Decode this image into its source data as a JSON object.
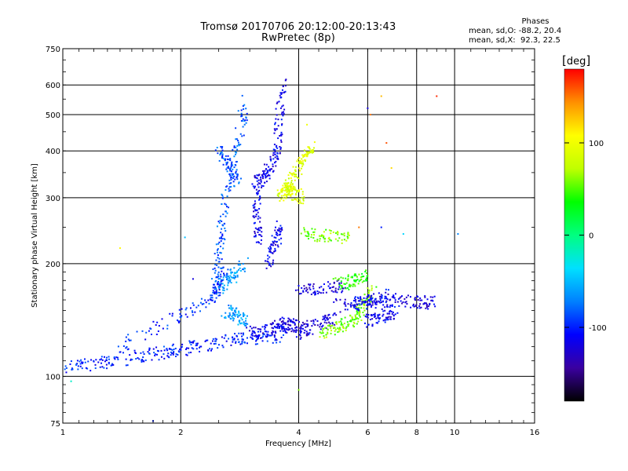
{
  "title": "Tromsø 20170706 20:12:00-20:13:43",
  "subtitle": "RwPretec (8p)",
  "stats": {
    "header": "Phases",
    "line1": "mean, sd,O: -88.2, 20.4",
    "line2": "mean, sd,X:  92.3, 22.5"
  },
  "colorbar": {
    "unit": "deg",
    "ticks": [
      "100",
      "0",
      "-100"
    ],
    "tick_values": [
      100,
      0,
      -100
    ],
    "range": [
      -180,
      180
    ],
    "stops": [
      "#000000",
      "#3a00a0",
      "#0000ff",
      "#0080ff",
      "#00e0ff",
      "#00ff80",
      "#00ff00",
      "#c0ff00",
      "#ffff00",
      "#ff9000",
      "#ff0000"
    ]
  },
  "chart_data": {
    "type": "scatter",
    "xlabel": "Frequency [MHz]",
    "ylabel": "Stationary phase Virtual Height [km]",
    "xscale": "log",
    "yscale": "log",
    "xlim": [
      1,
      16
    ],
    "ylim": [
      75,
      750
    ],
    "x_ticks": [
      1,
      2,
      4,
      6,
      8,
      10,
      16
    ],
    "x_tick_labels": [
      "1",
      "2",
      "4",
      "6",
      "8",
      "10",
      "16"
    ],
    "y_ticks": [
      75,
      100,
      200,
      300,
      400,
      500,
      600,
      750
    ],
    "y_tick_labels": [
      "75",
      "100",
      "200",
      "300",
      "400",
      "500",
      "600",
      "750"
    ],
    "grid": true,
    "series": [
      {
        "phase": -100,
        "segments": [
          [
            1.0,
            105,
            1.5,
            112
          ],
          [
            1.5,
            112,
            2.0,
            118
          ],
          [
            2.0,
            118,
            2.8,
            126
          ],
          [
            2.8,
            126,
            3.6,
            128
          ]
        ]
      },
      {
        "phase": -95,
        "segments": [
          [
            1.35,
            118,
            2.4,
            160
          ],
          [
            2.4,
            160,
            2.6,
            190
          ]
        ]
      },
      {
        "phase": -85,
        "segments": [
          [
            2.45,
            180,
            2.6,
            300
          ],
          [
            2.6,
            300,
            2.95,
            560
          ],
          [
            2.5,
            400,
            2.8,
            330
          ]
        ]
      },
      {
        "phase": -115,
        "segments": [
          [
            3.1,
            330,
            3.15,
            230
          ],
          [
            3.15,
            330,
            3.5,
            380
          ],
          [
            3.5,
            380,
            3.65,
            630
          ],
          [
            3.35,
            200,
            3.6,
            250
          ]
        ]
      },
      {
        "phase": -120,
        "segments": [
          [
            3.5,
            140,
            4.2,
            135
          ],
          [
            4.0,
            130,
            5.0,
            145
          ],
          [
            4.0,
            170,
            5.2,
            175
          ],
          [
            3.0,
            130,
            4.0,
            138
          ],
          [
            5.0,
            155,
            7.0,
            160
          ],
          [
            7.0,
            160,
            9.0,
            157
          ]
        ]
      },
      {
        "phase": 90,
        "segments": [
          [
            3.6,
            300,
            3.95,
            350
          ],
          [
            3.95,
            350,
            4.3,
            410
          ],
          [
            3.65,
            320,
            4.1,
            300
          ]
        ]
      },
      {
        "phase": 60,
        "segments": [
          [
            4.5,
            130,
            5.5,
            140
          ],
          [
            5.5,
            140,
            6.2,
            170
          ],
          [
            4.1,
            240,
            5.5,
            235
          ]
        ]
      },
      {
        "phase": -60,
        "segments": [
          [
            2.6,
            150,
            2.95,
            140
          ],
          [
            2.5,
            170,
            2.9,
            200
          ]
        ]
      },
      {
        "phase": 40,
        "segments": [
          [
            5.0,
            175,
            6.0,
            185
          ]
        ]
      },
      {
        "phase": -110,
        "segments": [
          [
            5.5,
            155,
            6.8,
            165
          ],
          [
            6.0,
            140,
            7.0,
            148
          ]
        ]
      }
    ],
    "points": [
      {
        "x": 1.4,
        "y": 220,
        "phase": 110
      },
      {
        "x": 2.05,
        "y": 235,
        "phase": -50
      },
      {
        "x": 2.15,
        "y": 182,
        "phase": -120
      },
      {
        "x": 1.7,
        "y": 76,
        "phase": -100
      },
      {
        "x": 1.05,
        "y": 97,
        "phase": -20
      },
      {
        "x": 4.0,
        "y": 92,
        "phase": 60
      },
      {
        "x": 6.0,
        "y": 520,
        "phase": -120
      },
      {
        "x": 6.1,
        "y": 500,
        "phase": 150
      },
      {
        "x": 6.5,
        "y": 560,
        "phase": 130
      },
      {
        "x": 6.7,
        "y": 420,
        "phase": 160
      },
      {
        "x": 6.9,
        "y": 360,
        "phase": 120
      },
      {
        "x": 9.0,
        "y": 560,
        "phase": 170
      },
      {
        "x": 10.2,
        "y": 240,
        "phase": -70
      },
      {
        "x": 7.4,
        "y": 240,
        "phase": -40
      },
      {
        "x": 6.5,
        "y": 250,
        "phase": -100
      },
      {
        "x": 5.7,
        "y": 250,
        "phase": 150
      },
      {
        "x": 4.2,
        "y": 470,
        "phase": 100
      }
    ]
  }
}
